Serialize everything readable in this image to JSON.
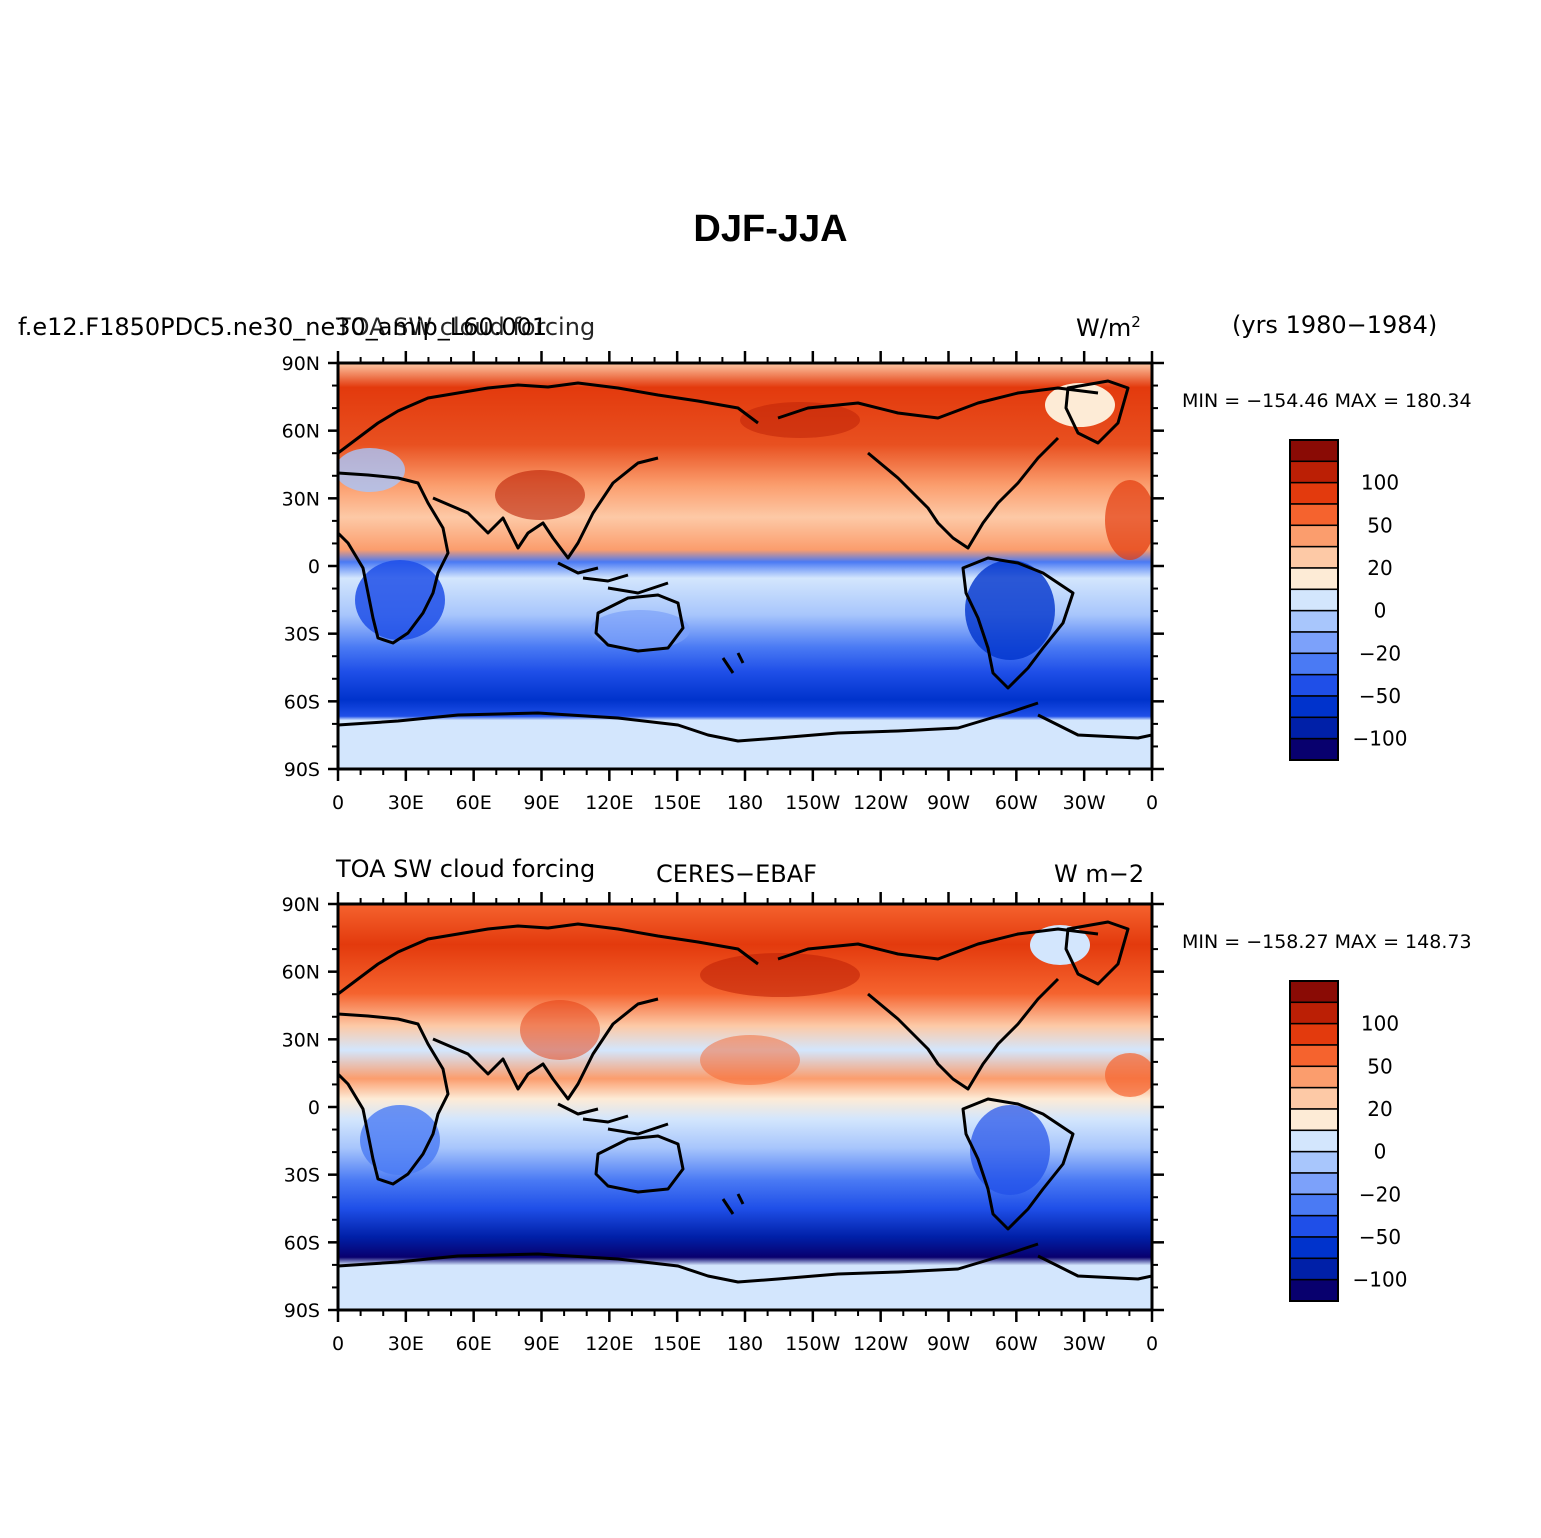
{
  "figure": {
    "title": "DJF-JJA",
    "period": "(yrs 1980−1984)"
  },
  "axes": {
    "lat_ticks": [
      "90N",
      "60N",
      "30N",
      "0",
      "30S",
      "60S",
      "90S"
    ],
    "lon_ticks": [
      "0",
      "30E",
      "60E",
      "90E",
      "120E",
      "150E",
      "180",
      "150W",
      "120W",
      "90W",
      "60W",
      "30W",
      "0"
    ]
  },
  "colorbar_levels": [
    "100",
    "50",
    "20",
    "0",
    "−20",
    "−50",
    "−100"
  ],
  "panels": [
    {
      "id": "model",
      "left_title_a": "f.e12.F1850PDC5.ne30_ne30_amip_L60.001",
      "left_title_b": "TOA SW cloud forcing",
      "units_base": "W/m",
      "units_sup": "2",
      "minmax": "MIN = −154.46  MAX = 180.34",
      "colors": [
        "#08006e",
        "#0020a8",
        "#0033cc",
        "#1f4fe8",
        "#4a7af4",
        "#7ca1fa",
        "#a8c6fc",
        "#d3e6fd",
        "#fdebd6",
        "#fdc9a6",
        "#fb9d6d",
        "#f5632e",
        "#e33a0d",
        "#bb1f05",
        "#8a0b05"
      ]
    },
    {
      "id": "obs",
      "left_title": "TOA SW cloud forcing",
      "center_title": "CERES−EBAF",
      "units": "W m−2",
      "minmax": "MIN = −158.27  MAX = 148.73",
      "colors": [
        "#08006e",
        "#0020a8",
        "#0033cc",
        "#1f4fe8",
        "#4a7af4",
        "#7ca1fa",
        "#a8c6fc",
        "#d3e6fd",
        "#fdebd6",
        "#fdc9a6",
        "#fb9d6d",
        "#f5632e",
        "#e33a0d",
        "#bb1f05",
        "#8a0b05"
      ]
    }
  ]
}
